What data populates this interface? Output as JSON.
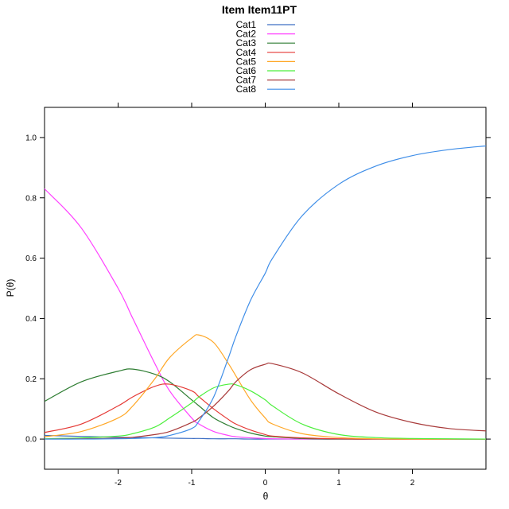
{
  "chart_data": {
    "type": "line",
    "title": "Item Item11PT",
    "xlabel": "θ",
    "ylabel": "P(θ)",
    "xlim": [
      -3,
      3
    ],
    "ylim": [
      -0.1,
      1.1
    ],
    "x_ticks": [
      -2,
      -1,
      0,
      1,
      2
    ],
    "y_ticks": [
      0.0,
      0.2,
      0.4,
      0.6,
      0.8,
      1.0
    ],
    "x_tick_labels": [
      "-2",
      "-1",
      "0",
      "1",
      "2"
    ],
    "y_tick_labels": [
      "0.0",
      "0.2",
      "0.4",
      "0.6",
      "0.8",
      "1.0"
    ],
    "legend_position": "top-center",
    "x": [
      -3.0,
      -2.5,
      -2.0,
      -1.8,
      -1.5,
      -1.3,
      -1.0,
      -0.9,
      -0.7,
      -0.5,
      -0.4,
      -0.2,
      0.0,
      0.1,
      0.5,
      1.0,
      1.5,
      2.0,
      2.5,
      3.0
    ],
    "series": [
      {
        "name": "Cat1",
        "color": "#3d6fc4",
        "values": [
          0.012,
          0.009,
          0.006,
          0.005,
          0.004,
          0.003,
          0.002,
          0.002,
          0.001,
          0.001,
          0.001,
          0.0,
          0.0,
          0.0,
          0.0,
          0.0,
          0.0,
          0.0,
          0.0,
          0.0
        ]
      },
      {
        "name": "Cat2",
        "color": "#ff40ff",
        "values": [
          0.83,
          0.7,
          0.5,
          0.4,
          0.25,
          0.16,
          0.07,
          0.05,
          0.025,
          0.012,
          0.008,
          0.004,
          0.002,
          0.001,
          0.0,
          0.0,
          0.0,
          0.0,
          0.0,
          0.0
        ]
      },
      {
        "name": "Cat3",
        "color": "#2e7d32",
        "values": [
          0.125,
          0.19,
          0.225,
          0.232,
          0.215,
          0.19,
          0.13,
          0.11,
          0.07,
          0.045,
          0.035,
          0.02,
          0.01,
          0.008,
          0.002,
          0.0,
          0.0,
          0.0,
          0.0,
          0.0
        ]
      },
      {
        "name": "Cat4",
        "color": "#e53935",
        "values": [
          0.022,
          0.05,
          0.11,
          0.14,
          0.175,
          0.182,
          0.16,
          0.14,
          0.1,
          0.065,
          0.05,
          0.03,
          0.015,
          0.01,
          0.004,
          0.001,
          0.0,
          0.0,
          0.0,
          0.0
        ]
      },
      {
        "name": "Cat5",
        "color": "#ffa726",
        "values": [
          0.008,
          0.025,
          0.07,
          0.11,
          0.2,
          0.27,
          0.335,
          0.345,
          0.32,
          0.25,
          0.21,
          0.13,
          0.07,
          0.05,
          0.018,
          0.005,
          0.001,
          0.0,
          0.0,
          0.0
        ]
      },
      {
        "name": "Cat6",
        "color": "#4cef3c",
        "values": [
          0.001,
          0.004,
          0.01,
          0.018,
          0.04,
          0.07,
          0.12,
          0.14,
          0.17,
          0.182,
          0.18,
          0.16,
          0.13,
          0.11,
          0.05,
          0.015,
          0.005,
          0.002,
          0.001,
          0.0
        ]
      },
      {
        "name": "Cat7",
        "color": "#a83a3a",
        "values": [
          0.0,
          0.001,
          0.003,
          0.006,
          0.015,
          0.025,
          0.055,
          0.07,
          0.11,
          0.16,
          0.19,
          0.23,
          0.248,
          0.25,
          0.22,
          0.15,
          0.09,
          0.055,
          0.035,
          0.027
        ]
      },
      {
        "name": "Cat8",
        "color": "#3f8ee8",
        "values": [
          0.0,
          0.0,
          0.001,
          0.002,
          0.005,
          0.012,
          0.035,
          0.06,
          0.14,
          0.27,
          0.34,
          0.46,
          0.55,
          0.6,
          0.74,
          0.845,
          0.905,
          0.94,
          0.96,
          0.972
        ]
      }
    ]
  }
}
